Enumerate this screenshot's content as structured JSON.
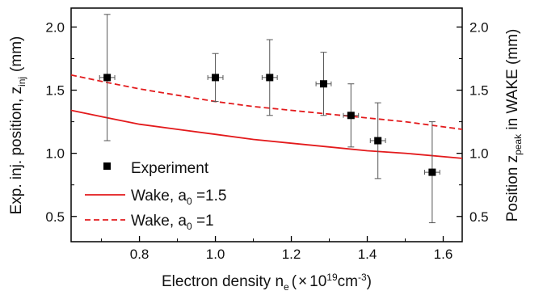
{
  "chart_data": {
    "type": "scatter",
    "x_axis": {
      "label_main": "Electron density n",
      "label_sub": "e",
      "label_unit_pre": "(",
      "label_unit_times": "×",
      "label_unit_base": "10",
      "label_unit_exp": "19",
      "label_unit_cm": "cm",
      "label_unit_cm_exp": "-3",
      "label_unit_post": ")",
      "range": [
        0.62,
        1.65
      ],
      "ticks": [
        0.8,
        1.0,
        1.2,
        1.4,
        1.6
      ],
      "tick_labels": [
        "0.8",
        "1.0",
        "1.2",
        "1.4",
        "1.6"
      ]
    },
    "y_left": {
      "label_main": "Exp. inj. position, z",
      "label_sub": "inj",
      "label_unit": "(mm)",
      "range": [
        0.3,
        2.15
      ],
      "ticks": [
        0.5,
        1.0,
        1.5,
        2.0
      ],
      "tick_labels": [
        "0.5",
        "1.0",
        "1.5",
        "2.0"
      ]
    },
    "y_right": {
      "label_pre": "Position  z",
      "label_sub": "peak",
      "label_post": " in WAKE (mm)",
      "range": [
        0.3,
        2.15
      ],
      "ticks": [
        0.5,
        1.0,
        1.5,
        2.0
      ],
      "tick_labels": [
        "0.5",
        "1.0",
        "1.5",
        "2.0"
      ]
    },
    "experiment": {
      "name": "Experiment",
      "color": "#000000",
      "points": [
        {
          "x": 0.715,
          "y": 1.6,
          "y_err": 0.5,
          "x_err": 0.02
        },
        {
          "x": 1.0,
          "y": 1.6,
          "y_err": 0.19,
          "x_err": 0.02
        },
        {
          "x": 1.143,
          "y": 1.6,
          "y_err": 0.3,
          "x_err": 0.02
        },
        {
          "x": 1.285,
          "y": 1.55,
          "y_err": 0.25,
          "x_err": 0.02
        },
        {
          "x": 1.357,
          "y": 1.3,
          "y_err": 0.25,
          "x_err": 0.02
        },
        {
          "x": 1.428,
          "y": 1.1,
          "y_err": 0.3,
          "x_err": 0.02
        },
        {
          "x": 1.571,
          "y": 0.85,
          "y_err": 0.4,
          "x_err": 0.02
        }
      ]
    },
    "wake_a15": {
      "name": "Wake, a",
      "name_sub": "0",
      "name_value": " =1.5",
      "color": "#e31a1c",
      "style": "solid",
      "x": [
        0.62,
        0.7,
        0.8,
        0.9,
        1.0,
        1.1,
        1.2,
        1.3,
        1.4,
        1.5,
        1.65
      ],
      "y": [
        1.34,
        1.29,
        1.23,
        1.19,
        1.15,
        1.11,
        1.08,
        1.05,
        1.02,
        1.0,
        0.96
      ]
    },
    "wake_a1": {
      "name": "Wake, a",
      "name_sub": "0",
      "name_value": " =1",
      "color": "#e31a1c",
      "style": "dashed",
      "x": [
        0.62,
        0.7,
        0.8,
        0.9,
        1.0,
        1.1,
        1.2,
        1.3,
        1.4,
        1.5,
        1.65
      ],
      "y": [
        1.62,
        1.57,
        1.51,
        1.46,
        1.41,
        1.37,
        1.34,
        1.31,
        1.28,
        1.25,
        1.19
      ]
    },
    "grid": false,
    "legend_position": "bottom-left"
  }
}
